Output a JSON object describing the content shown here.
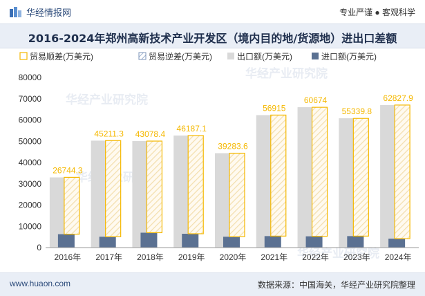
{
  "header": {
    "brand": "华经情报网",
    "tagline": "专业严谨 ● 客观科学"
  },
  "footer": {
    "url": "www.huaon.com",
    "source": "数据来源：中国海关，华经产业研究院整理"
  },
  "watermark": "华经产业研究院",
  "colors": {
    "surplus": "#f5b800",
    "deficit": "#4f6d9a",
    "export": "#d9d9d9",
    "import": "#5b7192"
  },
  "chart_data": {
    "type": "bar",
    "title": "2016-2024年郑州高新技术产业开发区（境内目的地/货源地）进出口差额",
    "categories": [
      "2016年",
      "2017年",
      "2018年",
      "2019年",
      "2020年",
      "2021年",
      "2022年",
      "2023年",
      "2024年"
    ],
    "legend": [
      "贸易顺差(万美元)",
      "贸易逆差(万美元)",
      "出口额(万美元)",
      "进口额(万美元)"
    ],
    "legend_position": "top",
    "series": [
      {
        "name": "出口额(万美元)",
        "values": [
          33000,
          50300,
          50100,
          52700,
          44400,
          62300,
          66000,
          60800,
          67000
        ]
      },
      {
        "name": "进口额(万美元)",
        "values": [
          6300,
          5100,
          7000,
          6500,
          5100,
          5400,
          5300,
          5400,
          4200
        ]
      },
      {
        "name": "贸易顺差(万美元)",
        "values": [
          26744.3,
          45211.3,
          43078.4,
          46187.1,
          39283.6,
          56915,
          60674,
          55339.8,
          62827.9
        ]
      }
    ],
    "ylim": [
      0,
      80000
    ],
    "yticks": [
      0,
      10000,
      20000,
      30000,
      40000,
      50000,
      60000,
      70000,
      80000
    ],
    "grid": false
  }
}
